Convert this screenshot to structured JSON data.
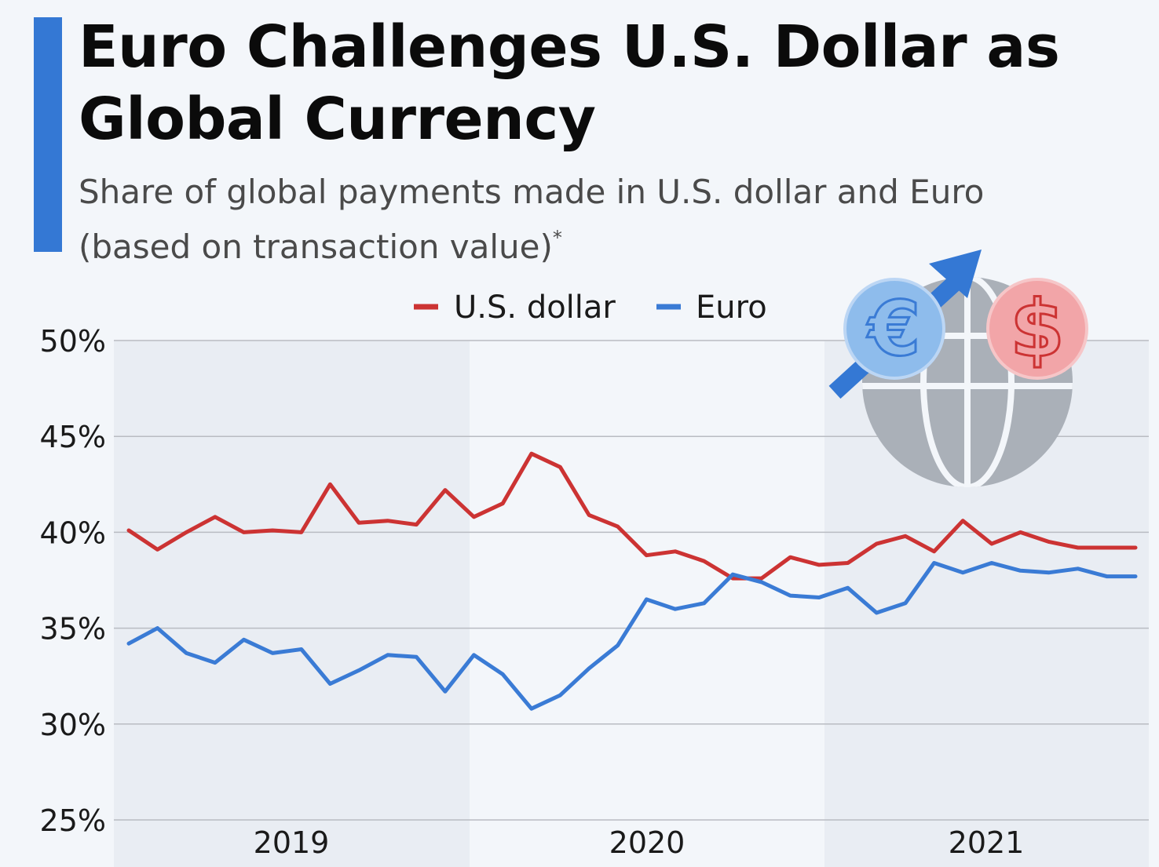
{
  "header": {
    "title": "Euro Challenges U.S. Dollar as Global Currency",
    "subtitle": "Share of global payments made in U.S. dollar and Euro (based on transaction value)",
    "footnote_mark": "*"
  },
  "colors": {
    "accent": "#3478d4",
    "usd": "#cc3333",
    "euro": "#3a7bd5",
    "background": "#f3f6fa",
    "band": "#e9edf3",
    "grid": "#b9bcc2"
  },
  "illustration": {
    "icons": [
      "globe-icon",
      "euro-coin-icon",
      "dollar-coin-icon",
      "rising-arrow-icon"
    ],
    "euro_symbol": "€",
    "dollar_symbol": "$"
  },
  "chart_data": {
    "type": "line",
    "legend": [
      "U.S. dollar",
      "Euro"
    ],
    "legend_position": "top-center",
    "ylim": [
      25,
      50
    ],
    "yticks": [
      50,
      45,
      40,
      35,
      30,
      25
    ],
    "ytick_labels": [
      "50%",
      "45%",
      "40%",
      "35%",
      "30%",
      "25%"
    ],
    "year_labels": [
      "2019",
      "2020",
      "2021"
    ],
    "grid": true,
    "x": [
      "Jan 2019",
      "Feb 2019",
      "Mar 2019",
      "Apr 2019",
      "May 2019",
      "Jun 2019",
      "Jul 2019",
      "Aug 2019",
      "Sep 2019",
      "Oct 2019",
      "Nov 2019",
      "Dec 2019",
      "Jan 2020",
      "Feb 2020",
      "Mar 2020",
      "Apr 2020",
      "May 2020",
      "Jun 2020",
      "Jul 2020",
      "Aug 2020",
      "Sep 2020",
      "Oct 2020",
      "Nov 2020",
      "Dec 2020",
      "Jan 2021",
      "Feb 2021",
      "Mar 2021",
      "Apr 2021",
      "May 2021",
      "Jun 2021",
      "Jul 2021",
      "Aug 2021",
      "Sep 2021",
      "Oct 2021",
      "Nov 2021",
      "Dec 2021"
    ],
    "series": [
      {
        "name": "U.S. dollar",
        "values": [
          40.1,
          39.1,
          40.0,
          40.8,
          40.0,
          40.1,
          40.0,
          42.5,
          40.5,
          40.6,
          40.4,
          42.2,
          40.8,
          41.5,
          44.1,
          43.4,
          40.9,
          40.3,
          38.8,
          39.0,
          38.5,
          37.6,
          37.6,
          38.7,
          38.3,
          38.4,
          39.4,
          39.8,
          39.0,
          40.6,
          39.4,
          40.0,
          39.5,
          39.2,
          39.2,
          39.2
        ]
      },
      {
        "name": "Euro",
        "values": [
          34.2,
          35.0,
          33.7,
          33.2,
          34.4,
          33.7,
          33.9,
          32.1,
          32.8,
          33.6,
          33.5,
          31.7,
          33.6,
          32.6,
          30.8,
          31.5,
          32.9,
          34.1,
          36.5,
          36.0,
          36.3,
          37.8,
          37.4,
          36.7,
          36.6,
          37.1,
          35.8,
          36.3,
          38.4,
          37.9,
          38.4,
          38.0,
          37.9,
          38.1,
          37.7,
          37.7
        ]
      }
    ]
  }
}
